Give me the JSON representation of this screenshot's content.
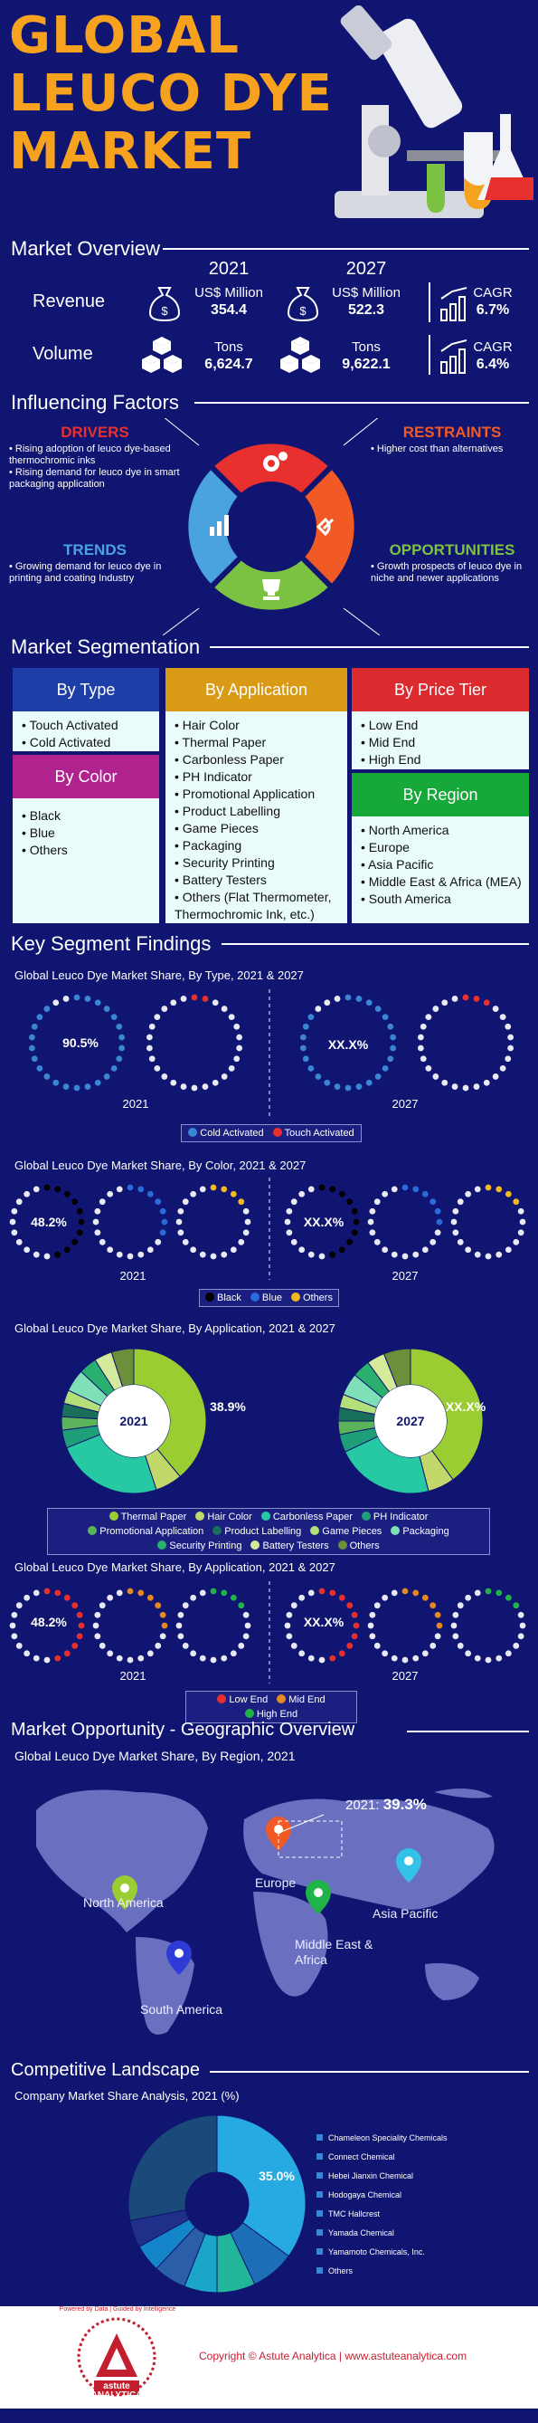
{
  "hero": {
    "line1": "GLOBAL",
    "line2": "LEUCO DYE",
    "line3": "MARKET"
  },
  "colors": {
    "bg": "#0f1570",
    "accent": "#f6a21f",
    "drivers": "#e8302f",
    "restraints": "#f15a24",
    "trends": "#4aa3df",
    "opportunities": "#7cc242"
  },
  "overview": {
    "title": "Market Overview",
    "years": [
      "2021",
      "2027"
    ],
    "cagr_label": "CAGR",
    "revenue": {
      "label": "Revenue",
      "unit": "US$ Million",
      "v2021": "354.4",
      "v2027": "522.3",
      "cagr": "6.7%"
    },
    "volume": {
      "label": "Volume",
      "unit": "Tons",
      "v2021": "6,624.7",
      "v2027": "9,622.1",
      "cagr": "6.4%"
    }
  },
  "factors": {
    "title": "Influencing Factors",
    "drivers": {
      "title": "DRIVERS",
      "items": [
        "Rising adoption of leuco dye-based thermochromic inks",
        "Rising demand for leuco dye in smart packaging application"
      ]
    },
    "restraints": {
      "title": "RESTRAINTS",
      "items": [
        "Higher cost than alternatives"
      ]
    },
    "trends": {
      "title": "TRENDS",
      "items": [
        "Growing demand for leuco dye in printing and coating Industry"
      ]
    },
    "opportunities": {
      "title": "OPPORTUNITIES",
      "items": [
        "Growth prospects of leuco dye in niche and newer applications"
      ]
    }
  },
  "segmentation": {
    "title": "Market Segmentation",
    "type": {
      "title": "By Type",
      "items": [
        "Touch Activated",
        "Cold Activated"
      ]
    },
    "color": {
      "title": "By Color",
      "items": [
        "Black",
        "Blue",
        "Others"
      ]
    },
    "application": {
      "title": "By Application",
      "items": [
        "Hair Color",
        "Thermal Paper",
        "Carbonless Paper",
        "PH Indicator",
        "Promotional Application",
        "Product Labelling",
        "Game Pieces",
        "Packaging",
        "Security Printing",
        "Battery Testers",
        "Others (Flat Thermometer, Thermochromic Ink, etc.)"
      ]
    },
    "price": {
      "title": "By Price Tier",
      "items": [
        "Low End",
        "Mid End",
        "High End"
      ]
    },
    "region": {
      "title": "By Region",
      "items": [
        "North America",
        "Europe",
        "Asia Pacific",
        "Middle East & Africa (MEA)",
        "South America"
      ]
    }
  },
  "findings": {
    "title": "Key Segment Findings",
    "by_type": {
      "title": "Global Leuco Dye Market Share, By Type, 2021 & 2027",
      "label2021": "90.5%",
      "label2027": "XX.X%",
      "year1": "2021",
      "year2": "2027",
      "legend": [
        "Cold Activated",
        "Touch Activated"
      ]
    },
    "by_color": {
      "title": "Global Leuco Dye Market Share, By Color, 2021 & 2027",
      "label2021": "48.2%",
      "label2027": "XX.X%",
      "year1": "2021",
      "year2": "2027",
      "legend": [
        "Black",
        "Blue",
        "Others"
      ]
    },
    "by_app": {
      "title": "Global Leuco Dye Market Share, By Application, 2021 & 2027",
      "center1": "2021",
      "center2": "2027",
      "label2021": "38.9%",
      "label2027": "XX.X%",
      "legend": [
        "Thermal Paper",
        "Hair Color",
        "Carbonless Paper",
        "PH Indicator",
        "Promotional Application",
        "Product Labelling",
        "Game Pieces",
        "Packaging",
        "Security Printing",
        "Battery Testers",
        "Others"
      ]
    },
    "by_price": {
      "title": "Global Leuco Dye Market Share, By Application, 2021 & 2027",
      "label2021": "48.2%",
      "label2027": "XX.X%",
      "year1": "2021",
      "year2": "2027",
      "legend": [
        "Low End",
        "Mid End",
        "High End"
      ]
    }
  },
  "geo": {
    "title": "Market Opportunity - Geographic Overview",
    "subtitle": "Global Leuco Dye Market Share, By Region, 2021",
    "callout_year": "2021:",
    "callout_value": "39.3%",
    "regions": [
      "North America",
      "Europe",
      "Asia Pacific",
      "Middle East & Africa",
      "South America"
    ]
  },
  "competitive": {
    "title": "Competitive Landscape",
    "subtitle": "Company Market Share Analysis, 2021 (%)",
    "label": "35.0%",
    "companies": [
      "Chameleon Speciality Chemicals",
      "Connect Chemical",
      "Hebei Jianxin Chemical",
      "Hodogaya Chemical",
      "TMC Hallcrest",
      "Yamada Chemical",
      "Yamamoto Chemicals, Inc.",
      "Others"
    ]
  },
  "footer": {
    "copyright": "Copyright © Astute Analytica  |  www.astuteanalytica.com",
    "tagline": "Powered by Data | Guided by Intelligence",
    "brand1": "astute",
    "brand2": "ANALYTICA"
  },
  "chart_data": [
    {
      "type": "pie",
      "title": "Global Leuco Dye Market Share, By Type, 2021 & 2027",
      "categories": [
        "Cold Activated",
        "Touch Activated"
      ],
      "series": [
        {
          "name": "2021",
          "values": [
            90.5,
            9.5
          ]
        }
      ]
    },
    {
      "type": "pie",
      "title": "Global Leuco Dye Market Share, By Color, 2021 & 2027",
      "categories": [
        "Black",
        "Blue",
        "Others"
      ],
      "series": [
        {
          "name": "2021",
          "values": [
            48.2,
            null,
            null
          ]
        }
      ]
    },
    {
      "type": "pie",
      "title": "Global Leuco Dye Market Share, By Application, 2021 & 2027",
      "categories": [
        "Thermal Paper",
        "Hair Color",
        "Carbonless Paper",
        "PH Indicator",
        "Promotional Application",
        "Product Labelling",
        "Game Pieces",
        "Packaging",
        "Security Printing",
        "Battery Testers",
        "Others"
      ],
      "series": [
        {
          "name": "2021",
          "values": [
            38.9,
            null,
            null,
            null,
            null,
            null,
            null,
            null,
            null,
            null,
            null
          ]
        }
      ]
    },
    {
      "type": "pie",
      "title": "Global Leuco Dye Market Share, By Region, 2021",
      "categories": [
        "Europe"
      ],
      "series": [
        {
          "name": "2021",
          "values": [
            39.3
          ]
        }
      ]
    },
    {
      "type": "pie",
      "title": "Company Market Share Analysis, 2021 (%)",
      "categories": [
        "Chameleon Speciality Chemicals",
        "Connect Chemical",
        "Hebei Jianxin Chemical",
        "Hodogaya Chemical",
        "TMC Hallcrest",
        "Yamada Chemical",
        "Yamamoto Chemicals, Inc.",
        "Others"
      ],
      "series": [
        {
          "name": "2021",
          "values": [
            35.0,
            null,
            null,
            null,
            null,
            null,
            null,
            null
          ]
        }
      ]
    }
  ]
}
